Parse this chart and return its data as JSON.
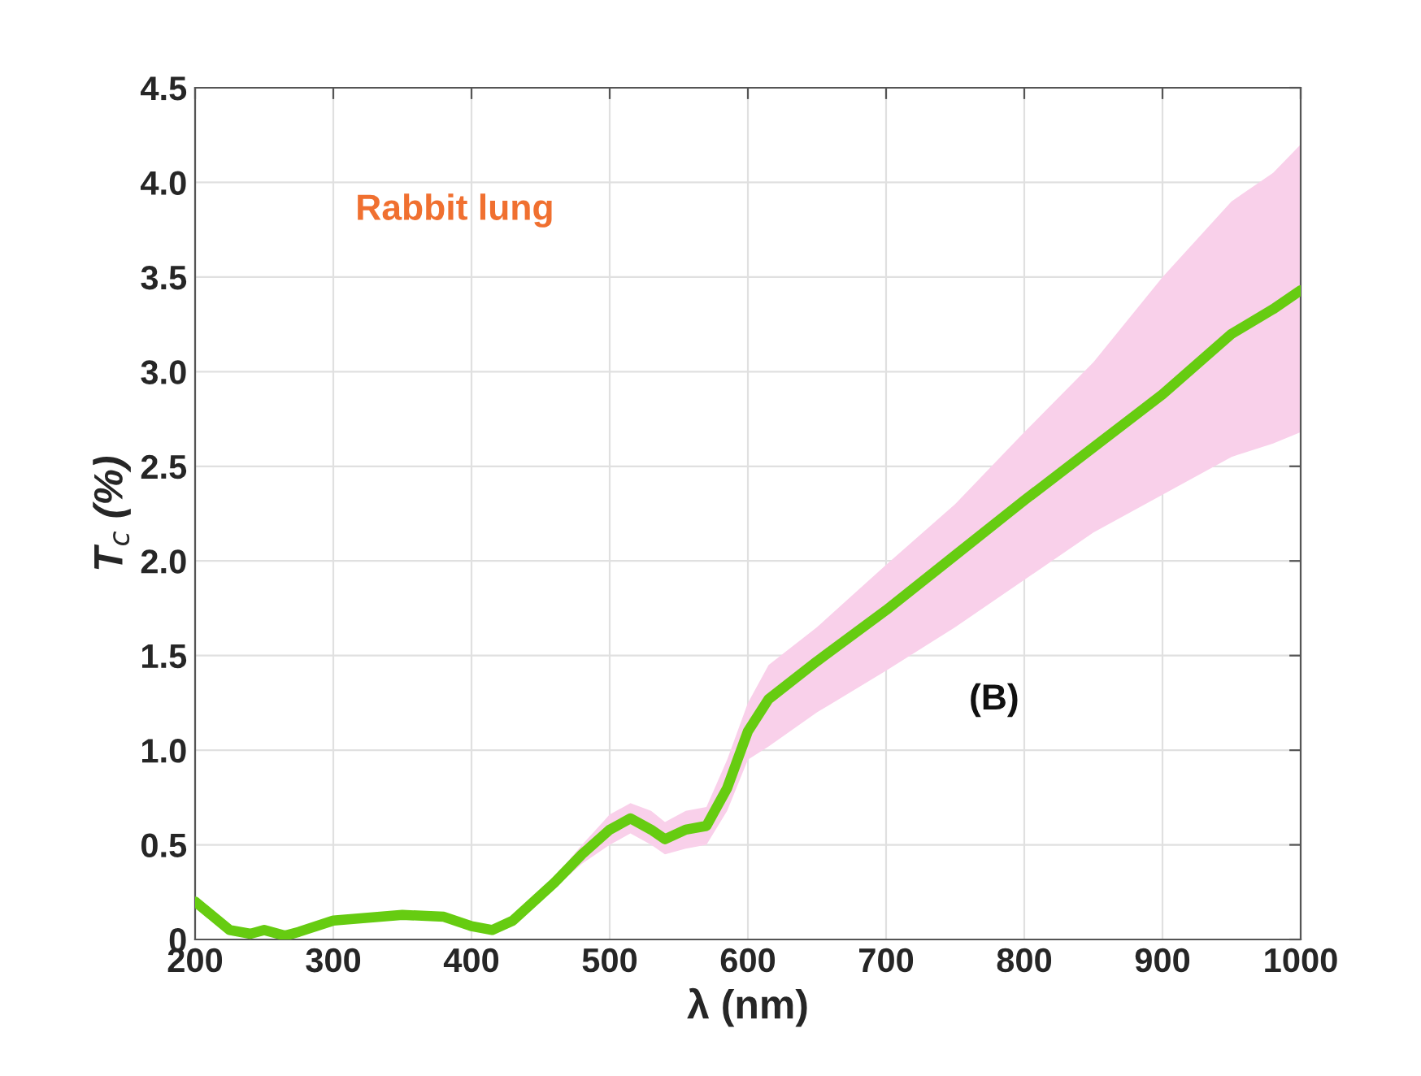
{
  "chart_data": {
    "type": "line",
    "xlabel": "λ (nm)",
    "ylabel": "T$_{c}$ (%)",
    "annotations": [
      "Rabbit lung",
      "(B)"
    ],
    "xlim": [
      200,
      1000
    ],
    "xticks": [
      200,
      300,
      400,
      500,
      600,
      700,
      800,
      900,
      1000
    ],
    "ylim": [
      0,
      4.5
    ],
    "yticks": [
      0,
      {
        "value": 0.5,
        "label": "0.5"
      },
      {
        "value": 1,
        "label": "1.0"
      },
      {
        "value": 1.5,
        "label": "1.5"
      },
      {
        "value": 2,
        "label": "2.0"
      },
      {
        "value": 2.5,
        "label": "2.5"
      },
      {
        "value": 3,
        "label": "3.0"
      },
      {
        "value": 3.5,
        "label": "3.5"
      },
      {
        "value": 4,
        "label": "4.0"
      },
      {
        "value": 4.5,
        "label": "4.5"
      }
    ],
    "grid": true,
    "legend": false,
    "series": [
      {
        "color": "#66cc11",
        "x": [
          200,
          225,
          240,
          250,
          265,
          275,
          300,
          350,
          380,
          400,
          415,
          430,
          460,
          480,
          500,
          515,
          530,
          540,
          555,
          570,
          585,
          600,
          615,
          650,
          700,
          750,
          800,
          850,
          900,
          950,
          980,
          1000
        ],
        "values": [
          0.2,
          0.05,
          0.03,
          0.05,
          0.02,
          0.04,
          0.1,
          0.13,
          0.12,
          0.07,
          0.05,
          0.1,
          0.3,
          0.45,
          0.58,
          0.64,
          0.58,
          0.53,
          0.58,
          0.6,
          0.8,
          1.1,
          1.27,
          1.47,
          1.74,
          2.03,
          2.32,
          2.6,
          2.88,
          3.2,
          3.33,
          3.43
        ],
        "lower": [
          0.2,
          0.05,
          0.03,
          0.05,
          0.02,
          0.04,
          0.1,
          0.13,
          0.12,
          0.07,
          0.05,
          0.1,
          0.27,
          0.4,
          0.5,
          0.56,
          0.5,
          0.45,
          0.48,
          0.5,
          0.68,
          0.95,
          1.02,
          1.2,
          1.42,
          1.65,
          1.9,
          2.15,
          2.35,
          2.55,
          2.62,
          2.68
        ],
        "upper": [
          0.2,
          0.05,
          0.03,
          0.05,
          0.02,
          0.04,
          0.1,
          0.13,
          0.12,
          0.07,
          0.05,
          0.1,
          0.33,
          0.5,
          0.66,
          0.72,
          0.68,
          0.62,
          0.68,
          0.7,
          0.95,
          1.25,
          1.45,
          1.65,
          1.98,
          2.3,
          2.68,
          3.05,
          3.5,
          3.9,
          4.05,
          4.2
        ]
      }
    ]
  }
}
